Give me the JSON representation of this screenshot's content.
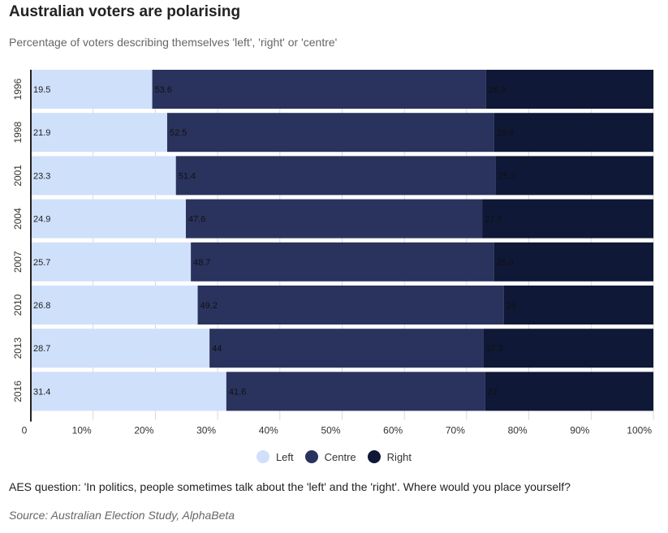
{
  "header": {
    "title": "Australian voters are polarising",
    "subtitle": "Percentage of voters describing themselves 'left', 'right' or 'centre'"
  },
  "colors": {
    "left": "#cfe0fb",
    "centre": "#2a335e",
    "right": "#0f1836",
    "background": "#ffffff"
  },
  "chart_data": {
    "type": "bar",
    "orientation": "horizontal",
    "stacked": true,
    "categories": [
      "1996",
      "1998",
      "2001",
      "2004",
      "2007",
      "2010",
      "2013",
      "2016"
    ],
    "series": [
      {
        "name": "Left",
        "values": [
          19.5,
          21.9,
          23.3,
          24.9,
          25.7,
          26.8,
          28.7,
          31.4
        ]
      },
      {
        "name": "Centre",
        "values": [
          53.6,
          52.5,
          51.4,
          47.6,
          48.7,
          49.2,
          44,
          41.6
        ]
      },
      {
        "name": "Right",
        "values": [
          26.9,
          25.6,
          25.3,
          27.5,
          25.6,
          24,
          27.3,
          27
        ]
      }
    ],
    "xlim": [
      0,
      100
    ],
    "xticks": [
      "0",
      "10%",
      "20%",
      "30%",
      "40%",
      "50%",
      "60%",
      "70%",
      "80%",
      "90%",
      "100%"
    ],
    "grid": true,
    "legend_position": "bottom-center"
  },
  "legend": {
    "items": [
      "Left",
      "Centre",
      "Right"
    ]
  },
  "footer": {
    "note": "AES question: 'In politics, people sometimes talk about the 'left' and the 'right'. Where would you place yourself?",
    "source": "Source: Australian Election Study, AlphaBeta"
  }
}
